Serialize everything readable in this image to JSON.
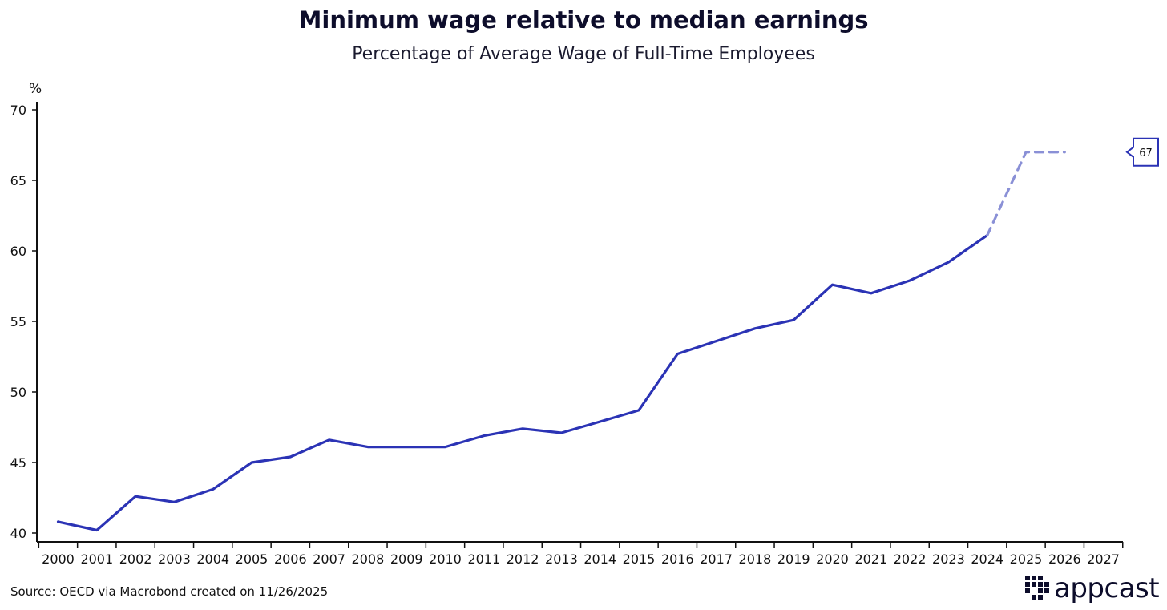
{
  "header": {
    "title": "Minimum wage relative to median earnings",
    "subtitle": "Percentage of Average Wage of Full-Time Employees"
  },
  "chart_data": {
    "type": "line",
    "title": "Minimum wage relative to median earnings",
    "subtitle": "Percentage of Average Wage of Full-Time Employees",
    "ylabel": "%",
    "xlabel": "",
    "ylim": [
      40,
      70
    ],
    "yticks": [
      40,
      45,
      50,
      55,
      60,
      65,
      70
    ],
    "categories": [
      "2000",
      "2001",
      "2002",
      "2003",
      "2004",
      "2005",
      "2006",
      "2007",
      "2008",
      "2009",
      "2010",
      "2011",
      "2012",
      "2013",
      "2014",
      "2015",
      "2016",
      "2017",
      "2018",
      "2019",
      "2020",
      "2021",
      "2022",
      "2023",
      "2024",
      "2025",
      "2026",
      "2027"
    ],
    "grid": false,
    "series": [
      {
        "style": "solid",
        "color": "#2b33b5",
        "x": [
          2000,
          2001,
          2002,
          2003,
          2004,
          2005,
          2006,
          2007,
          2008,
          2009,
          2010,
          2011,
          2012,
          2013,
          2014,
          2015,
          2016,
          2017,
          2018,
          2019,
          2020,
          2021,
          2022,
          2023,
          2024
        ],
        "values": [
          40.8,
          40.2,
          42.6,
          42.2,
          43.1,
          45.0,
          45.4,
          46.6,
          46.1,
          46.1,
          46.1,
          46.9,
          47.4,
          47.1,
          47.9,
          48.7,
          52.7,
          53.6,
          54.5,
          55.1,
          57.6,
          57.0,
          57.9,
          59.2,
          61.1
        ]
      },
      {
        "style": "dashed",
        "color": "#8a90d6",
        "x": [
          2024,
          2025,
          2026
        ],
        "values": [
          61.1,
          67.0,
          67.0
        ]
      }
    ],
    "annotations": [
      {
        "label": "67",
        "value": 67
      }
    ]
  },
  "footer": {
    "source": "Source: OECD via Macrobond created on 11/26/2025",
    "brand": "appcast"
  },
  "colors": {
    "line": "#2b33b5",
    "projection": "#8a90d6",
    "axis": "#111111"
  }
}
